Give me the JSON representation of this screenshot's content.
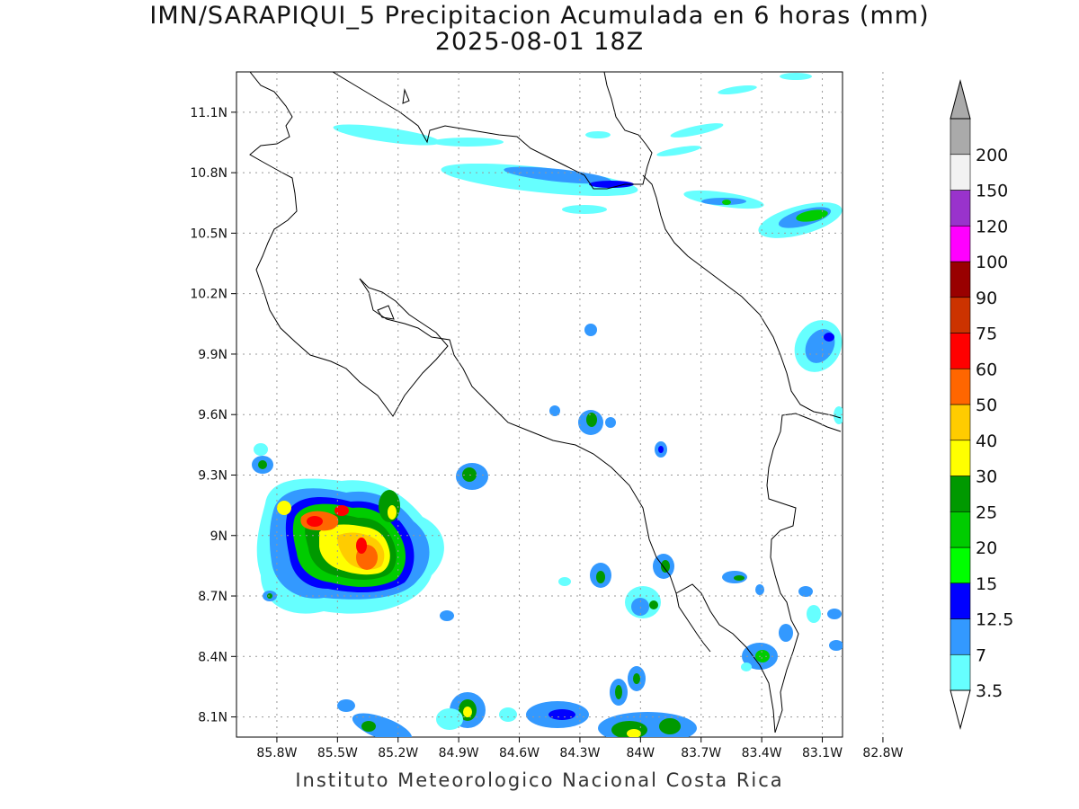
{
  "title": {
    "line1": "IMN/SARAPIQUI_5 Precipitacion Acumulada en 6 horas (mm)",
    "line2": "2025-08-01 18Z"
  },
  "footer": "Instituto Meteorologico Nacional Costa Rica",
  "map": {
    "lon_range": [
      -86.0,
      -83.0
    ],
    "lat_range": [
      8.0,
      11.3
    ],
    "lon_ticks": [
      {
        "value": -85.8,
        "label": "85.8W"
      },
      {
        "value": -85.5,
        "label": "85.5W"
      },
      {
        "value": -85.2,
        "label": "85.2W"
      },
      {
        "value": -84.9,
        "label": "84.9W"
      },
      {
        "value": -84.6,
        "label": "84.6W"
      },
      {
        "value": -84.3,
        "label": "84.3W"
      },
      {
        "value": -84.0,
        "label": "84W"
      },
      {
        "value": -83.7,
        "label": "83.7W"
      },
      {
        "value": -83.4,
        "label": "83.4W"
      },
      {
        "value": -83.1,
        "label": "83.1W"
      },
      {
        "value": -82.8,
        "label": "82.8W"
      }
    ],
    "lat_ticks": [
      {
        "value": 11.1,
        "label": "11.1N"
      },
      {
        "value": 10.8,
        "label": "10.8N"
      },
      {
        "value": 10.5,
        "label": "10.5N"
      },
      {
        "value": 10.2,
        "label": "10.2N"
      },
      {
        "value": 9.9,
        "label": "9.9N"
      },
      {
        "value": 9.6,
        "label": "9.6N"
      },
      {
        "value": 9.3,
        "label": "9.3N"
      },
      {
        "value": 9.0,
        "label": "9N"
      },
      {
        "value": 8.7,
        "label": "8.7N"
      },
      {
        "value": 8.4,
        "label": "8.4N"
      },
      {
        "value": 8.1,
        "label": "8.1N"
      }
    ],
    "grid": true
  },
  "legend": {
    "levels": [
      {
        "label": "3.5",
        "color": "#66ffff"
      },
      {
        "label": "7",
        "color": "#3399ff"
      },
      {
        "label": "12.5",
        "color": "#0000ff"
      },
      {
        "label": "15",
        "color": "#00ff00"
      },
      {
        "label": "20",
        "color": "#00cc00"
      },
      {
        "label": "25",
        "color": "#009900"
      },
      {
        "label": "30",
        "color": "#ffff00"
      },
      {
        "label": "40",
        "color": "#ffcc00"
      },
      {
        "label": "50",
        "color": "#ff6600"
      },
      {
        "label": "60",
        "color": "#ff0000"
      },
      {
        "label": "75",
        "color": "#cc3300"
      },
      {
        "label": "90",
        "color": "#990000"
      },
      {
        "label": "100",
        "color": "#ff00ff"
      },
      {
        "label": "120",
        "color": "#9933cc"
      },
      {
        "label": "150",
        "color": "#f2f2f2"
      },
      {
        "label": "200",
        "color": "#aaaaaa"
      }
    ]
  }
}
